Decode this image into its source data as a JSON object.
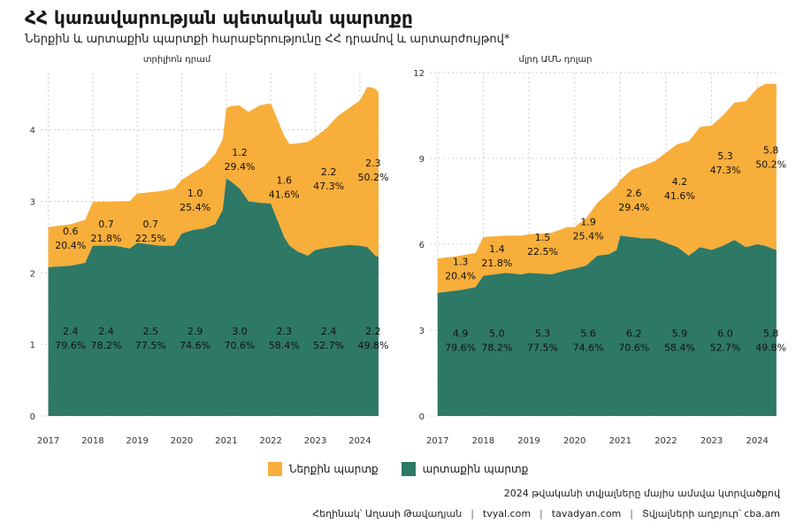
{
  "title": "ՀՀ կառավարության պետական պարտքը",
  "subtitle": "Ներքին և արտաքին պարտքի հարաբերությունը ՀՀ դրամով և արտարժույթով*",
  "colors": {
    "domestic": "#F8AE3A",
    "external": "#2E7866",
    "grid": "#cfcfcf"
  },
  "legend": {
    "domestic": "Ներքին պարտք",
    "external": "արտաքին պարտք"
  },
  "note": "2024 թվականի տվյալները մայիս ամսվա կտրվածքով",
  "footer": {
    "author": "Հեղինակ՝ Աղասի Թավադյան",
    "site1": "tvyal.com",
    "site2": "tavadyan.com",
    "source": "Տվյալների աղբյուր՝ cba.am"
  },
  "chart_data": [
    {
      "type": "area",
      "title": "տրիլիոն դրամ",
      "xlim": [
        2016.83,
        2024.5
      ],
      "ylim": [
        0,
        4.8
      ],
      "yticks": [
        0,
        1,
        2,
        3,
        4
      ],
      "xticks": [
        "2017",
        "2018",
        "2019",
        "2020",
        "2021",
        "2022",
        "2023",
        "2024"
      ],
      "x": [
        2017.0,
        2017.5,
        2017.83,
        2018.0,
        2018.5,
        2018.83,
        2019.0,
        2019.5,
        2019.83,
        2020.0,
        2020.25,
        2020.5,
        2020.75,
        2020.92,
        2021.0,
        2021.1,
        2021.3,
        2021.5,
        2021.75,
        2022.0,
        2022.3,
        2022.42,
        2022.6,
        2022.83,
        2023.0,
        2023.25,
        2023.5,
        2023.75,
        2024.0,
        2024.17,
        2024.33,
        2024.42
      ],
      "series": [
        {
          "name": "արտաքին պարտք",
          "values": [
            2.08,
            2.1,
            2.14,
            2.38,
            2.38,
            2.34,
            2.42,
            2.38,
            2.38,
            2.55,
            2.6,
            2.62,
            2.68,
            2.88,
            3.32,
            3.28,
            3.18,
            3.0,
            2.98,
            2.97,
            2.5,
            2.38,
            2.3,
            2.24,
            2.32,
            2.35,
            2.37,
            2.39,
            2.38,
            2.36,
            2.25,
            2.22
          ]
        },
        {
          "name": "Ներքին պարտք",
          "values": [
            0.56,
            0.58,
            0.6,
            0.61,
            0.62,
            0.66,
            0.69,
            0.76,
            0.8,
            0.75,
            0.8,
            0.87,
            0.98,
            0.99,
            0.98,
            1.05,
            1.16,
            1.25,
            1.36,
            1.4,
            1.42,
            1.42,
            1.51,
            1.59,
            1.58,
            1.67,
            1.82,
            1.91,
            2.03,
            2.24,
            2.33,
            2.31
          ]
        }
      ],
      "labels": [
        {
          "x": 2017.5,
          "ext": "2.4",
          "ext_pct": "79.6%",
          "dom": "0.6",
          "dom_pct": "20.4%"
        },
        {
          "x": 2018.3,
          "ext": "2.4",
          "ext_pct": "78.2%",
          "dom": "0.7",
          "dom_pct": "21.8%"
        },
        {
          "x": 2019.3,
          "ext": "2.5",
          "ext_pct": "77.5%",
          "dom": "0.7",
          "dom_pct": "22.5%"
        },
        {
          "x": 2020.3,
          "ext": "2.9",
          "ext_pct": "74.6%",
          "dom": "1.0",
          "dom_pct": "25.4%"
        },
        {
          "x": 2021.3,
          "ext": "3.0",
          "ext_pct": "70.6%",
          "dom": "1.2",
          "dom_pct": "29.4%"
        },
        {
          "x": 2022.3,
          "ext": "2.3",
          "ext_pct": "58.4%",
          "dom": "1.6",
          "dom_pct": "41.6%"
        },
        {
          "x": 2023.3,
          "ext": "2.4",
          "ext_pct": "52.7%",
          "dom": "2.2",
          "dom_pct": "47.3%"
        },
        {
          "x": 2024.3,
          "ext": "2.2",
          "ext_pct": "49.8%",
          "dom": "2.3",
          "dom_pct": "50.2%"
        }
      ],
      "label_y": {
        "ext": 1.05,
        "dom": [
          2.45,
          2.55,
          2.55,
          2.98,
          3.55,
          3.16,
          3.28,
          3.4
        ]
      }
    },
    {
      "type": "area",
      "title": "մլրդ ԱՄՆ դոլար",
      "xlim": [
        2016.83,
        2024.5
      ],
      "ylim": [
        0,
        12
      ],
      "yticks": [
        0,
        3,
        6,
        9,
        12
      ],
      "xticks": [
        "2017",
        "2018",
        "2019",
        "2020",
        "2021",
        "2022",
        "2023",
        "2024"
      ],
      "x": [
        2017.0,
        2017.5,
        2017.83,
        2018.0,
        2018.5,
        2018.83,
        2019.0,
        2019.5,
        2019.83,
        2020.0,
        2020.25,
        2020.5,
        2020.75,
        2020.92,
        2021.0,
        2021.25,
        2021.5,
        2021.75,
        2022.0,
        2022.25,
        2022.5,
        2022.75,
        2023.0,
        2023.25,
        2023.5,
        2023.75,
        2024.0,
        2024.17,
        2024.33,
        2024.42
      ],
      "series": [
        {
          "name": "արտաքին պարտք",
          "values": [
            4.3,
            4.4,
            4.5,
            4.9,
            5.0,
            4.95,
            5.0,
            4.95,
            5.1,
            5.15,
            5.25,
            5.6,
            5.65,
            5.8,
            6.3,
            6.25,
            6.2,
            6.2,
            6.05,
            5.9,
            5.6,
            5.9,
            5.8,
            5.95,
            6.15,
            5.9,
            6.0,
            5.95,
            5.85,
            5.8
          ]
        },
        {
          "name": "Ներքին պարտք",
          "values": [
            1.2,
            1.2,
            1.2,
            1.35,
            1.3,
            1.35,
            1.35,
            1.45,
            1.5,
            1.45,
            1.65,
            1.85,
            2.15,
            2.25,
            1.95,
            2.35,
            2.55,
            2.7,
            3.15,
            3.6,
            4.0,
            4.2,
            4.35,
            4.55,
            4.8,
            5.1,
            5.45,
            5.65,
            5.75,
            5.8
          ]
        }
      ],
      "labels": [
        {
          "x": 2017.5,
          "ext": "4.9",
          "ext_pct": "79.6%",
          "dom": "1.3",
          "dom_pct": "20.4%"
        },
        {
          "x": 2018.3,
          "ext": "5.0",
          "ext_pct": "78.2%",
          "dom": "1.4",
          "dom_pct": "21.8%"
        },
        {
          "x": 2019.3,
          "ext": "5.3",
          "ext_pct": "77.5%",
          "dom": "1.5",
          "dom_pct": "22.5%"
        },
        {
          "x": 2020.3,
          "ext": "5.6",
          "ext_pct": "74.6%",
          "dom": "1.9",
          "dom_pct": "25.4%"
        },
        {
          "x": 2021.3,
          "ext": "6.2",
          "ext_pct": "70.6%",
          "dom": "2.6",
          "dom_pct": "29.4%"
        },
        {
          "x": 2022.3,
          "ext": "5.9",
          "ext_pct": "58.4%",
          "dom": "4.2",
          "dom_pct": "41.6%"
        },
        {
          "x": 2023.3,
          "ext": "6.0",
          "ext_pct": "52.7%",
          "dom": "5.3",
          "dom_pct": "47.3%"
        },
        {
          "x": 2024.3,
          "ext": "5.8",
          "ext_pct": "49.8%",
          "dom": "5.8",
          "dom_pct": "50.2%"
        }
      ],
      "label_y": {
        "ext": 2.55,
        "dom": [
          5.05,
          5.5,
          5.9,
          6.45,
          7.45,
          7.85,
          8.75,
          8.95
        ]
      }
    }
  ]
}
